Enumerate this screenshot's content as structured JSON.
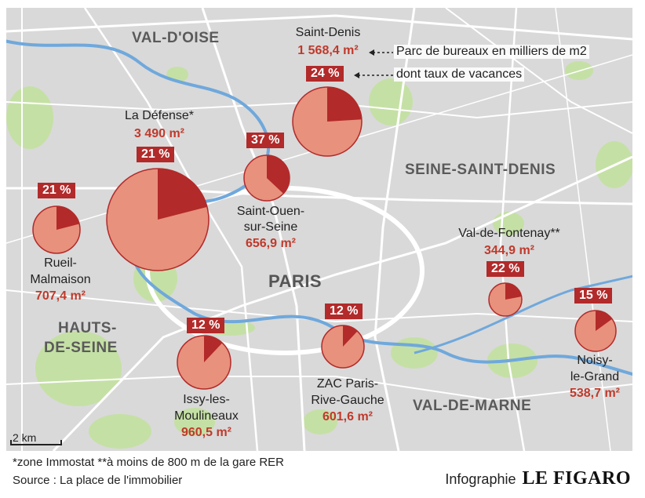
{
  "regions": {
    "val_doise": "VAL-D'OISE",
    "seine_saint_denis": "SEINE-SAINT-DENIS",
    "hauts_de_seine_1": "HAUTS-",
    "hauts_de_seine_2": "DE-SEINE",
    "val_de_marne": "VAL-DE-MARNE",
    "paris": "PARIS"
  },
  "legend": {
    "stock_label": "Parc de bureaux en milliers de m2",
    "vacancy_label": "dont taux de vacances"
  },
  "sites": [
    {
      "id": "saint-denis",
      "name_lines": [
        "Saint-Denis"
      ],
      "area": "1 568,4 m²",
      "vacancy_label": "24 %",
      "vacancy": 24
    },
    {
      "id": "la-defense",
      "name_lines": [
        "La Défense*"
      ],
      "area": "3 490 m²",
      "vacancy_label": "21 %",
      "vacancy": 21
    },
    {
      "id": "saint-ouen",
      "name_lines": [
        "Saint-Ouen-",
        "sur-Seine"
      ],
      "area": "656,9 m²",
      "vacancy_label": "37 %",
      "vacancy": 37
    },
    {
      "id": "rueil",
      "name_lines": [
        "Rueil-",
        "Malmaison"
      ],
      "area": "707,4 m²",
      "vacancy_label": "21 %",
      "vacancy": 21
    },
    {
      "id": "issy",
      "name_lines": [
        "Issy-les-",
        "Moulineaux"
      ],
      "area": "960,5 m²",
      "vacancy_label": "12 %",
      "vacancy": 12
    },
    {
      "id": "zac-paris",
      "name_lines": [
        "ZAC Paris-",
        "Rive-Gauche"
      ],
      "area": "601,6 m²",
      "vacancy_label": "12 %",
      "vacancy": 12
    },
    {
      "id": "val-de-fontenay",
      "name_lines": [
        "Val-de-Fontenay**"
      ],
      "area": "344,9 m²",
      "vacancy_label": "22 %",
      "vacancy": 22
    },
    {
      "id": "noisy",
      "name_lines": [
        "Noisy-",
        "le-Grand"
      ],
      "area": "538,7 m²",
      "vacancy_label": "15 %",
      "vacancy": 15
    }
  ],
  "scale": "2 km",
  "footer": {
    "note": "*zone Immostat **à moins de 800 m de la gare RER",
    "source": "Source : La place de l'immobilier",
    "credit_prefix": "Infographie",
    "credit_brand": "LE FIGARO"
  },
  "colors": {
    "land": "#d9d9d9",
    "roads": "#ffffff",
    "water": "#6fa8dc",
    "parks": "#c5e0a5",
    "circle_fill": "#e8917d",
    "circle_stroke": "#b22a2a",
    "pie_slice": "#b22a2a",
    "badge": "#b22a2a",
    "area_text": "#c0392b"
  }
}
